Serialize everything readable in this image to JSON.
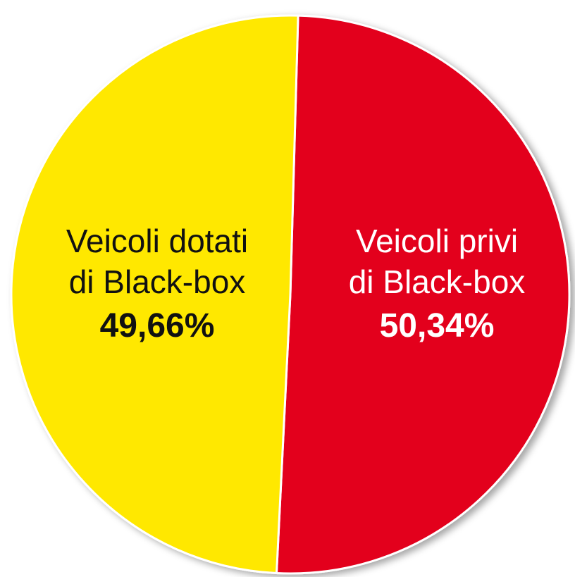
{
  "chart_data": {
    "type": "pie",
    "title": "",
    "slices": [
      {
        "label_lines": [
          "Veicoli dotati",
          "di Black-box"
        ],
        "value": 49.66,
        "value_label": "49,66%",
        "color": "#FFE800",
        "text_color": "#111111"
      },
      {
        "label_lines": [
          "Veicoli privi",
          "di Black-box"
        ],
        "value": 50.34,
        "value_label": "50,34%",
        "color": "#E3001B",
        "text_color": "#FFFFFF"
      }
    ],
    "legend": "none",
    "edge_color": "#FFFFFF"
  }
}
